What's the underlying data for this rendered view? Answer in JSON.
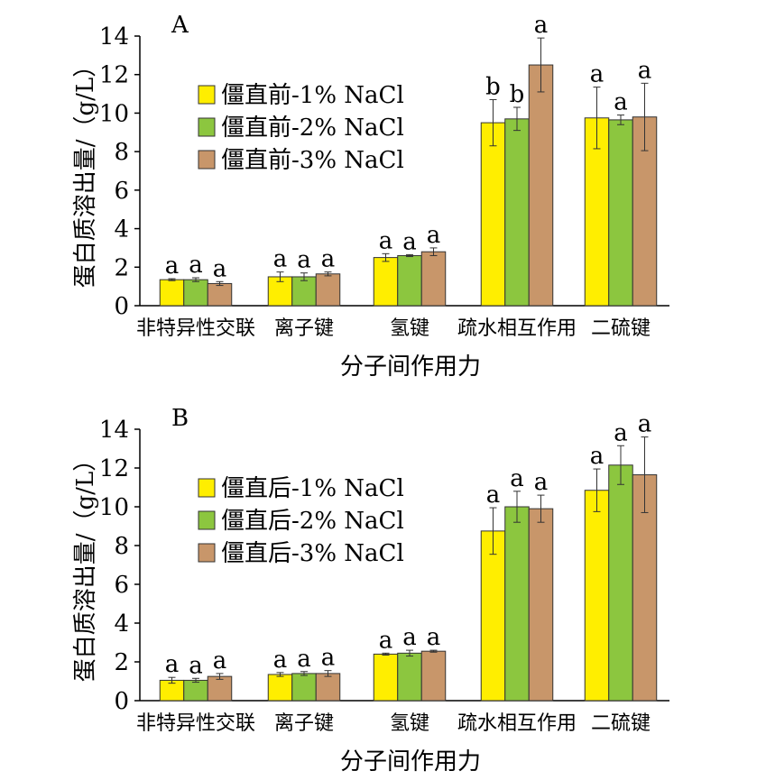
{
  "colors": [
    "#ffee00",
    "#8cc63f",
    "#c8966a"
  ],
  "chart_data": [
    {
      "type": "bar",
      "panel_label": "A",
      "categories": [
        "非特异性交联",
        "离子键",
        "氢键",
        "疏水相互作用",
        "二硫键"
      ],
      "xlabel": "分子间作用力",
      "ylabel": "蛋白质溶出量/（g/L）",
      "ylim": [
        0,
        14
      ],
      "yticks": [
        "0",
        "2",
        "4",
        "6",
        "8",
        "10",
        "12",
        "14"
      ],
      "legend_position": "upper-left",
      "series": [
        {
          "name": "僵直前-1% NaCl",
          "values": [
            1.35,
            1.5,
            2.5,
            9.5,
            9.75
          ],
          "errors": [
            0.05,
            0.25,
            0.2,
            1.2,
            1.6
          ],
          "letters": [
            "a",
            "a",
            "a",
            "b",
            "a"
          ]
        },
        {
          "name": "僵直前-2% NaCl",
          "values": [
            1.35,
            1.5,
            2.6,
            9.7,
            9.65
          ],
          "errors": [
            0.1,
            0.2,
            0.05,
            0.6,
            0.25
          ],
          "letters": [
            "a",
            "a",
            "a",
            "b",
            "a"
          ]
        },
        {
          "name": "僵直前-3% NaCl",
          "values": [
            1.15,
            1.65,
            2.8,
            12.5,
            9.8
          ],
          "errors": [
            0.1,
            0.1,
            0.2,
            1.4,
            1.75
          ],
          "letters": [
            "a",
            "a",
            "a",
            "a",
            "a"
          ]
        }
      ]
    },
    {
      "type": "bar",
      "panel_label": "B",
      "categories": [
        "非特异性交联",
        "离子键",
        "氢键",
        "疏水相互作用",
        "二硫键"
      ],
      "xlabel": "分子间作用力",
      "ylabel": "蛋白质溶出量/（g/L）",
      "ylim": [
        0,
        14
      ],
      "yticks": [
        "0",
        "2",
        "4",
        "6",
        "8",
        "10",
        "12",
        "14"
      ],
      "legend_position": "upper-left",
      "series": [
        {
          "name": "僵直后-1% NaCl",
          "values": [
            1.05,
            1.35,
            2.4,
            8.75,
            10.85
          ],
          "errors": [
            0.15,
            0.1,
            0.05,
            1.2,
            1.1
          ],
          "letters": [
            "a",
            "a",
            "a",
            "a",
            "a"
          ]
        },
        {
          "name": "僵直后-2% NaCl",
          "values": [
            1.05,
            1.4,
            2.45,
            10.0,
            12.15
          ],
          "errors": [
            0.1,
            0.1,
            0.15,
            0.8,
            1.0
          ],
          "letters": [
            "a",
            "a",
            "a",
            "a",
            "a"
          ]
        },
        {
          "name": "僵直后-3% NaCl",
          "values": [
            1.25,
            1.4,
            2.55,
            9.9,
            11.65
          ],
          "errors": [
            0.15,
            0.15,
            0.05,
            0.7,
            1.95
          ],
          "letters": [
            "a",
            "a",
            "a",
            "a",
            "a"
          ]
        }
      ]
    }
  ]
}
